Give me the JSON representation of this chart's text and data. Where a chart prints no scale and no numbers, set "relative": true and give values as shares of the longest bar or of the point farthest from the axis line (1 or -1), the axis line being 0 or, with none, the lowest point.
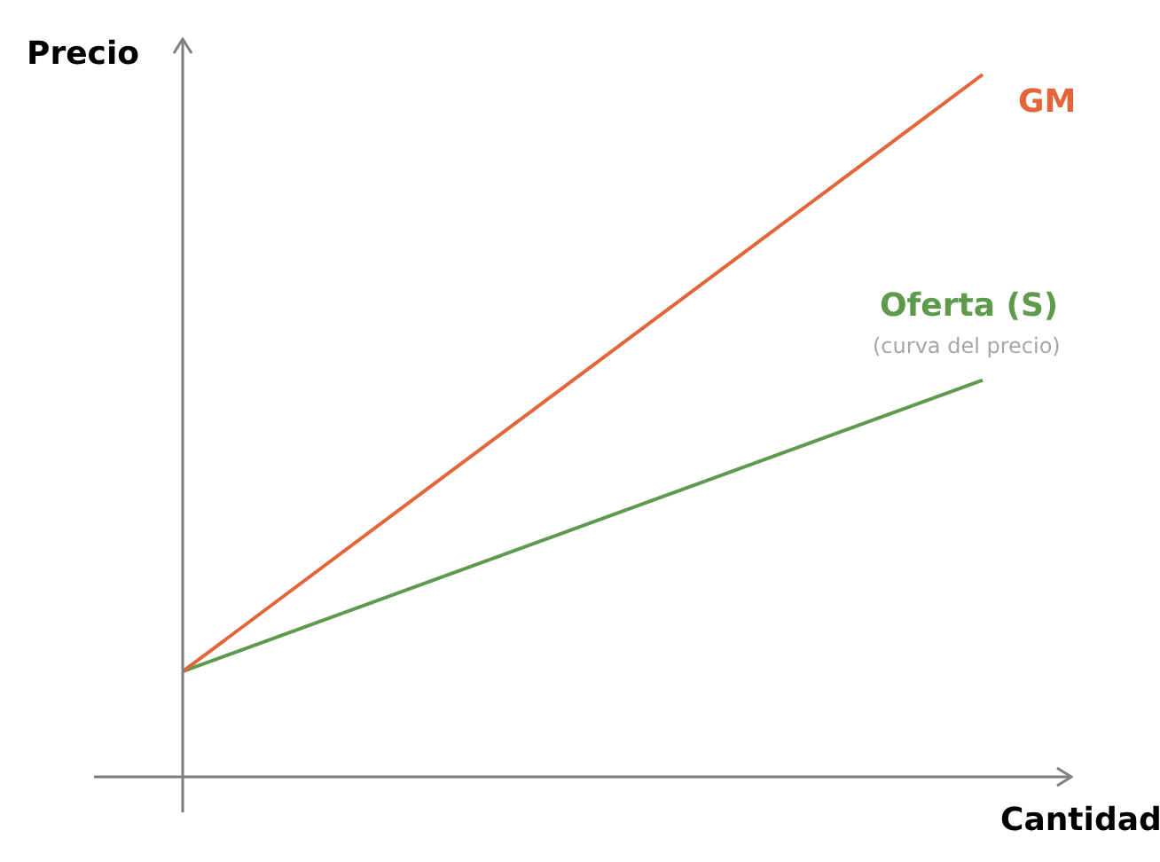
{
  "chart_data": {
    "type": "line",
    "relative": true,
    "xlabel": "Cantidad",
    "ylabel": "Precio",
    "grid": false,
    "legend": false,
    "tick_labels": false,
    "marker": "none",
    "line_style": "solid",
    "categories": [
      null,
      null
    ],
    "series": [
      {
        "name": "GM",
        "color": "#e2663a",
        "values": [
          0.15,
          1
        ]
      },
      {
        "name": "Oferta (S)",
        "color": "#5e9a4c",
        "values": [
          0.15,
          0.565
        ]
      }
    ],
    "annotations": [
      "(curva del precio)"
    ]
  }
}
